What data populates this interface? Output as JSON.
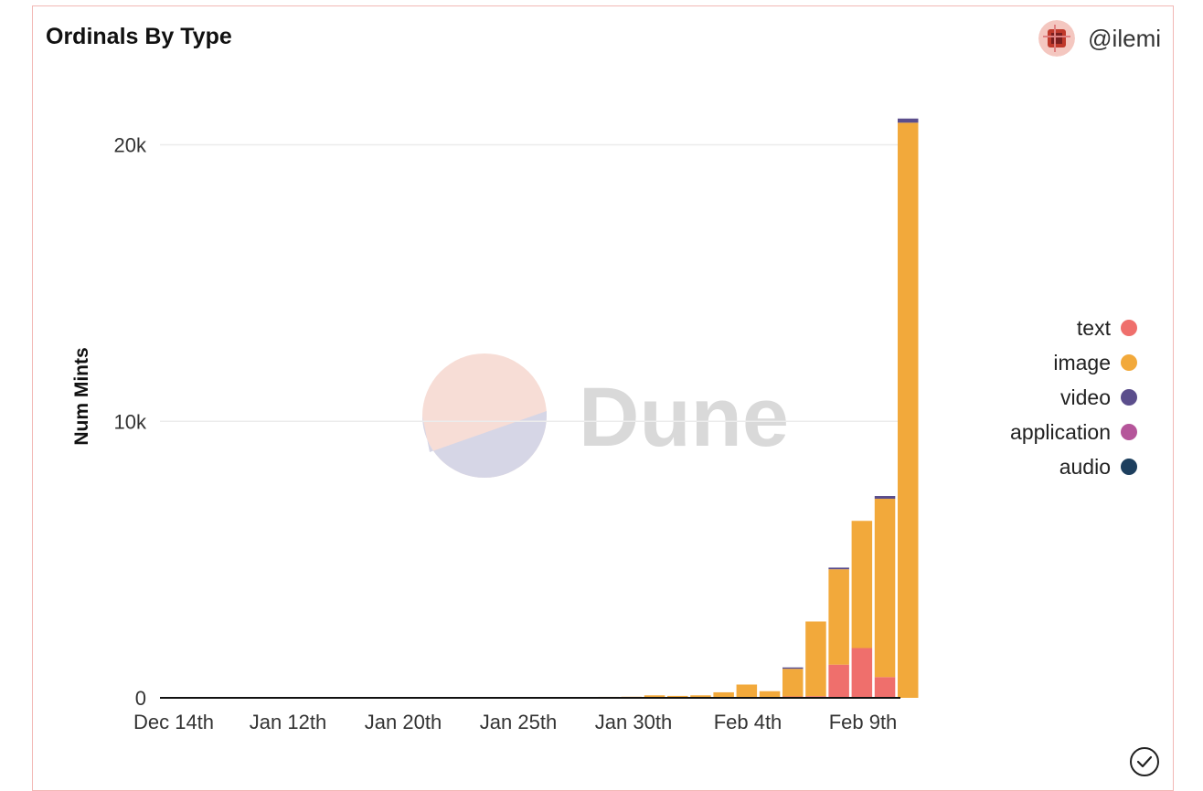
{
  "header": {
    "title": "Ordinals By Type",
    "author": "@ilemi"
  },
  "watermark": "Dune",
  "colors": {
    "text": "#ef6f6c",
    "image": "#f2a93b",
    "video": "#5b4e8c",
    "application": "#b5559a",
    "audio": "#1d3f5e",
    "grid": "#ececec",
    "axis": "#111111",
    "card_border": "#f2b8b5"
  },
  "chart_data": {
    "type": "bar",
    "stacked": true,
    "title": "Ordinals By Type",
    "xlabel": "",
    "ylabel": "Num Mints",
    "ylim": [
      0,
      22000
    ],
    "yticks": [
      {
        "value": 0,
        "label": "0"
      },
      {
        "value": 10000,
        "label": "10k"
      },
      {
        "value": 20000,
        "label": "20k"
      }
    ],
    "xtick_labels": [
      "Dec 14th",
      "Jan 12th",
      "Jan 20th",
      "Jan 25th",
      "Jan 30th",
      "Feb 4th",
      "Feb 9th"
    ],
    "categories": [
      "Dec 14th",
      "",
      "",
      "",
      "",
      "Jan 12th",
      "",
      "",
      "",
      "",
      "Jan 20th",
      "",
      "",
      "",
      "",
      "Jan 25th",
      "",
      "",
      "",
      "",
      "Jan 30th",
      "",
      "",
      "",
      "",
      "Feb 4th",
      "",
      "",
      "",
      "",
      "Feb 9th",
      ""
    ],
    "series": [
      {
        "name": "text",
        "values": [
          0,
          0,
          0,
          0,
          0,
          0,
          0,
          0,
          0,
          0,
          0,
          0,
          0,
          0,
          0,
          0,
          0,
          0,
          0,
          0,
          0,
          0,
          0,
          0,
          0,
          0,
          50,
          60,
          1200,
          1800,
          750,
          0
        ]
      },
      {
        "name": "image",
        "values": [
          5,
          5,
          5,
          5,
          5,
          5,
          5,
          5,
          5,
          10,
          10,
          10,
          20,
          20,
          25,
          25,
          30,
          30,
          35,
          40,
          90,
          70,
          90,
          200,
          480,
          240,
          1000,
          2700,
          3450,
          4600,
          6450,
          20800
        ]
      },
      {
        "name": "video",
        "values": [
          0,
          0,
          0,
          0,
          0,
          0,
          0,
          0,
          0,
          0,
          0,
          0,
          0,
          0,
          0,
          0,
          0,
          0,
          0,
          0,
          0,
          0,
          0,
          0,
          0,
          0,
          50,
          0,
          60,
          0,
          100,
          150
        ]
      },
      {
        "name": "application",
        "values": [
          0,
          0,
          0,
          0,
          0,
          0,
          0,
          0,
          0,
          0,
          0,
          0,
          0,
          0,
          0,
          0,
          0,
          0,
          0,
          0,
          0,
          0,
          0,
          0,
          0,
          0,
          0,
          0,
          0,
          0,
          0,
          0
        ]
      },
      {
        "name": "audio",
        "values": [
          0,
          0,
          0,
          0,
          0,
          0,
          0,
          0,
          0,
          0,
          0,
          0,
          0,
          0,
          0,
          0,
          0,
          0,
          0,
          0,
          0,
          0,
          0,
          0,
          0,
          0,
          0,
          0,
          0,
          0,
          0,
          0
        ]
      }
    ],
    "grid": true,
    "legend_position": "right"
  }
}
